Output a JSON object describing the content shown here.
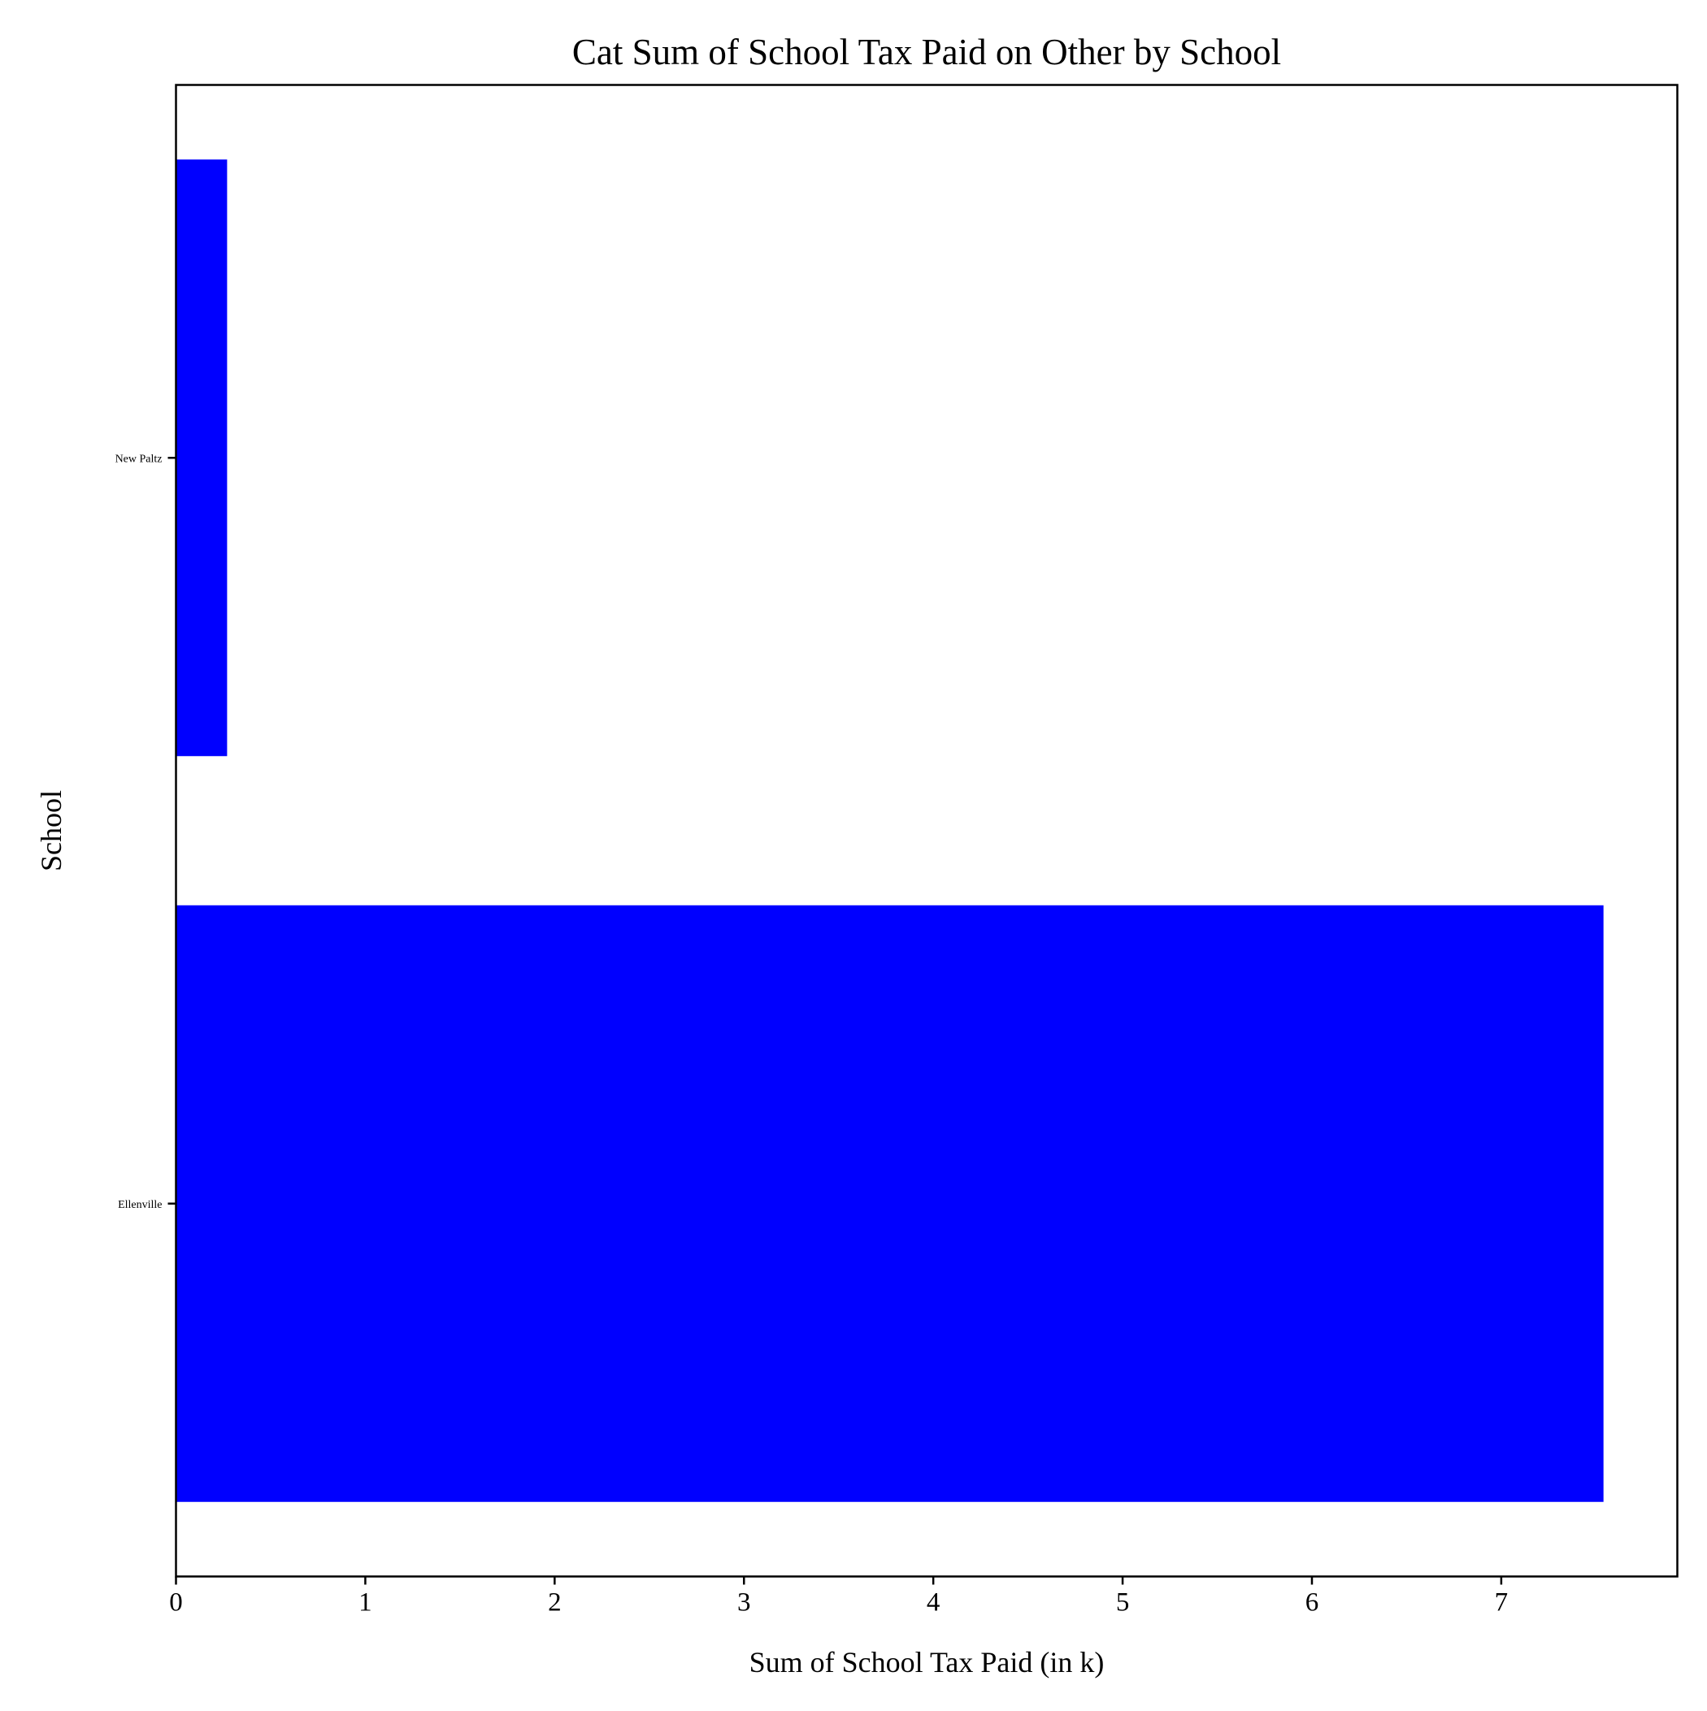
{
  "chart_data": {
    "type": "bar",
    "orientation": "horizontal",
    "title": "Cat Sum of School Tax Paid on Other by School",
    "xlabel": "Sum of School Tax Paid (in k)",
    "ylabel": "School",
    "categories": [
      "Ellenville",
      "New Paltz"
    ],
    "values": [
      7.54,
      0.27
    ],
    "xlim": [
      0,
      7.93
    ],
    "xticks": [
      "0",
      "1",
      "2",
      "3",
      "4",
      "5",
      "6",
      "7"
    ],
    "grid": false,
    "colors": {
      "bar": "#0000ff",
      "axis": "#000000",
      "background": "#ffffff"
    }
  }
}
